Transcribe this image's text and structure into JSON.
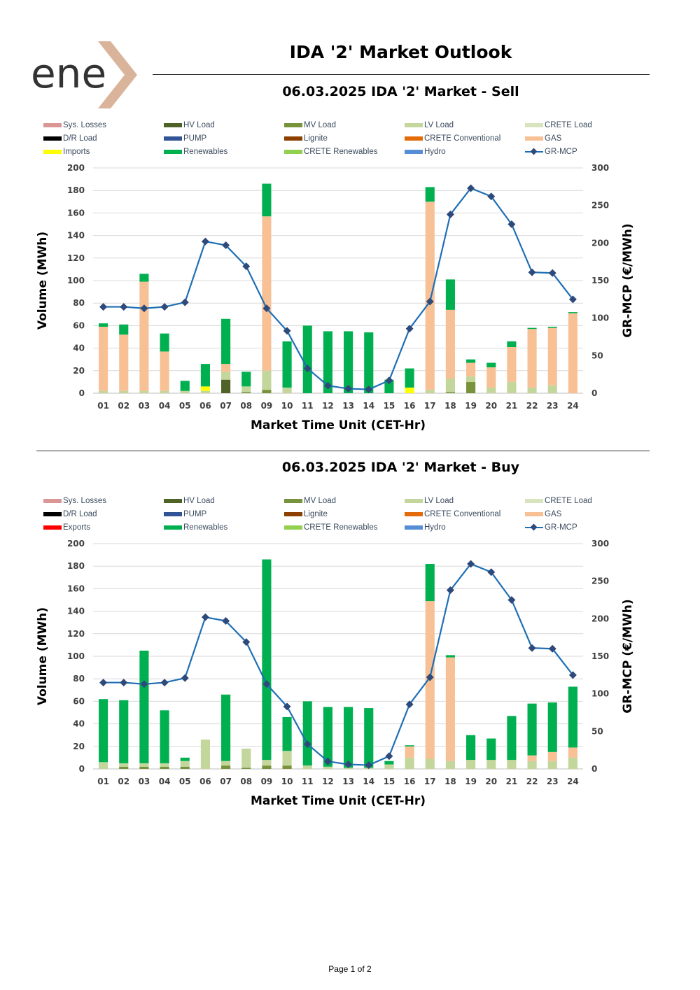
{
  "logo": {
    "text": "ene",
    "brand_color": "#333333",
    "accent_color": "#d9b49a"
  },
  "page": {
    "title": "IDA '2' Market Outlook",
    "footer": "Page 1 of 2"
  },
  "colors": {
    "Sys. Losses": "#d99694",
    "HV Load": "#4f6228",
    "MV Load": "#77933c",
    "LV Load": "#c3d69b",
    "CRETE Load": "#d7e4bd",
    "D/R Load": "#000000",
    "PUMP": "#305496",
    "Lignite": "#8b4000",
    "CRETE Conventional": "#e36c09",
    "GAS": "#f8c195",
    "Imports": "#ffff00",
    "Exports": "#ff0000",
    "Renewables": "#00b050",
    "CRETE Renewables": "#92d050",
    "Hydro": "#558ed5",
    "GR-MCP": "#1f6fb5",
    "GR-MCP-marker": "#2e4a7a"
  },
  "chart_data": [
    {
      "id": "sell",
      "type": "bar",
      "stacked": true,
      "title": "06.03.2025  IDA '2' Market - Sell",
      "xlabel": "Market Time Unit (CET-Hr)",
      "ylabel": "Volume (MWh)",
      "y2label": "GR-MCP (€/MWh)",
      "ylim": [
        0,
        200
      ],
      "y_ticks": [
        0,
        20,
        40,
        60,
        80,
        100,
        120,
        140,
        160,
        180,
        200
      ],
      "y2lim": [
        0,
        300
      ],
      "y2_ticks": [
        0,
        50,
        100,
        150,
        200,
        250,
        300
      ],
      "grid": true,
      "legend_position": "top",
      "legend": [
        "Sys. Losses",
        "HV Load",
        "MV Load",
        "LV Load",
        "CRETE Load",
        "D/R Load",
        "PUMP",
        "Lignite",
        "CRETE Conventional",
        "GAS",
        "Imports",
        "Renewables",
        "CRETE Renewables",
        "Hydro",
        "GR-MCP"
      ],
      "categories": [
        "01",
        "02",
        "03",
        "04",
        "05",
        "06",
        "07",
        "08",
        "09",
        "10",
        "11",
        "12",
        "13",
        "14",
        "15",
        "16",
        "17",
        "18",
        "19",
        "20",
        "21",
        "22",
        "23",
        "24"
      ],
      "series": [
        {
          "name": "HV Load",
          "values": [
            0,
            0,
            0,
            0,
            0,
            0,
            12,
            0,
            0,
            0,
            0,
            0,
            0,
            0,
            0,
            0,
            0,
            0,
            0,
            0,
            0,
            0,
            0,
            0
          ]
        },
        {
          "name": "MV Load",
          "values": [
            0,
            0,
            0,
            0,
            0,
            0,
            0,
            1,
            3,
            0,
            0,
            0,
            0,
            0,
            0,
            0,
            0,
            1,
            10,
            0,
            0,
            0,
            0,
            0
          ]
        },
        {
          "name": "LV Load",
          "values": [
            2,
            2,
            2,
            2,
            2,
            2,
            7,
            5,
            17,
            5,
            0,
            0,
            0,
            0,
            0,
            0,
            3,
            12,
            5,
            5,
            10,
            5,
            7,
            0
          ]
        },
        {
          "name": "Imports",
          "values": [
            0,
            0,
            0,
            0,
            0,
            4,
            0,
            0,
            0,
            0,
            0,
            0,
            0,
            0,
            0,
            5,
            0,
            0,
            0,
            0,
            0,
            0,
            0,
            0
          ]
        },
        {
          "name": "GAS",
          "values": [
            57,
            50,
            97,
            35,
            0,
            0,
            7,
            0,
            137,
            0,
            0,
            0,
            0,
            0,
            0,
            0,
            167,
            61,
            12,
            18,
            31,
            52,
            51,
            71
          ]
        },
        {
          "name": "Renewables",
          "values": [
            3,
            9,
            7,
            16,
            9,
            20,
            40,
            13,
            29,
            41,
            60,
            55,
            55,
            54,
            12,
            17,
            13,
            27,
            3,
            4,
            5,
            1,
            1,
            1
          ]
        }
      ],
      "line": {
        "name": "GR-MCP",
        "axis": "y2",
        "values": [
          115,
          115,
          113,
          115,
          121,
          202,
          197,
          169,
          113,
          83,
          33,
          10,
          6,
          5,
          17,
          86,
          122,
          238,
          273,
          262,
          225,
          161,
          160,
          125
        ]
      }
    },
    {
      "id": "buy",
      "type": "bar",
      "stacked": true,
      "title": "06.03.2025  IDA '2' Market - Buy",
      "xlabel": "Market Time Unit (CET-Hr)",
      "ylabel": "Volume (MWh)",
      "y2label": "GR-MCP (€/MWh)",
      "ylim": [
        0,
        200
      ],
      "y_ticks": [
        0,
        20,
        40,
        60,
        80,
        100,
        120,
        140,
        160,
        180,
        200
      ],
      "y2lim": [
        0,
        300
      ],
      "y2_ticks": [
        0,
        50,
        100,
        150,
        200,
        250,
        300
      ],
      "grid": true,
      "legend_position": "top",
      "legend": [
        "Sys. Losses",
        "HV Load",
        "MV Load",
        "LV Load",
        "CRETE Load",
        "D/R Load",
        "PUMP",
        "Lignite",
        "CRETE Conventional",
        "GAS",
        "Exports",
        "Renewables",
        "CRETE Renewables",
        "Hydro",
        "GR-MCP"
      ],
      "categories": [
        "01",
        "02",
        "03",
        "04",
        "05",
        "06",
        "07",
        "08",
        "09",
        "10",
        "11",
        "12",
        "13",
        "14",
        "15",
        "16",
        "17",
        "18",
        "19",
        "20",
        "21",
        "22",
        "23",
        "24"
      ],
      "series": [
        {
          "name": "MV Load",
          "values": [
            0,
            2,
            2,
            2,
            2,
            0,
            3,
            1,
            3,
            3,
            0,
            0,
            0,
            0,
            0,
            0,
            0,
            0,
            0,
            0,
            0,
            0,
            0,
            0
          ]
        },
        {
          "name": "LV Load",
          "values": [
            6,
            3,
            3,
            3,
            5,
            26,
            4,
            17,
            5,
            13,
            3,
            2,
            1,
            1,
            4,
            10,
            9,
            7,
            8,
            8,
            8,
            7,
            7,
            10
          ]
        },
        {
          "name": "GAS",
          "values": [
            0,
            0,
            0,
            0,
            0,
            0,
            0,
            0,
            0,
            0,
            0,
            0,
            0,
            0,
            0,
            10,
            140,
            92,
            0,
            0,
            0,
            5,
            8,
            9
          ]
        },
        {
          "name": "Renewables",
          "values": [
            56,
            56,
            100,
            47,
            3,
            0,
            59,
            0,
            178,
            30,
            57,
            53,
            54,
            53,
            3,
            1,
            33,
            2,
            22,
            19,
            39,
            46,
            44,
            54
          ]
        }
      ],
      "line": {
        "name": "GR-MCP",
        "axis": "y2",
        "values": [
          115,
          115,
          113,
          115,
          121,
          202,
          197,
          169,
          113,
          83,
          33,
          10,
          6,
          5,
          17,
          86,
          122,
          238,
          273,
          262,
          225,
          161,
          160,
          125
        ]
      }
    }
  ]
}
